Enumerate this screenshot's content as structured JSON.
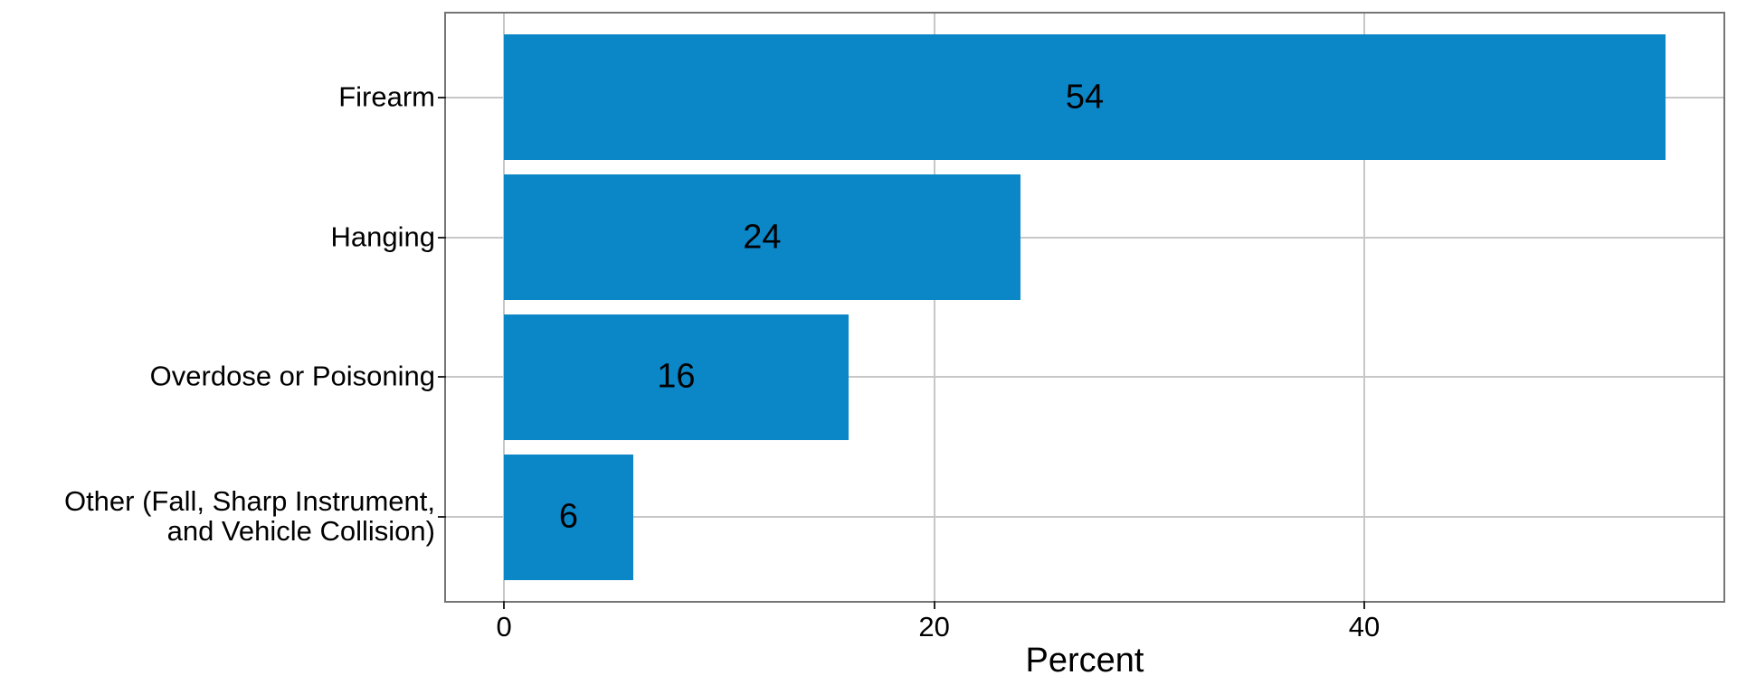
{
  "chart_data": {
    "type": "bar",
    "orientation": "horizontal",
    "title": "",
    "xlabel": "Percent",
    "ylabel": "",
    "categories": [
      "Firearm",
      "Hanging",
      "Overdose or Poisoning",
      "Other (Fall, Sharp Instrument, and Vehicle Collision)"
    ],
    "y_tick_labels_wrapped": [
      [
        "Firearm"
      ],
      [
        "Hanging"
      ],
      [
        "Overdose or Poisoning"
      ],
      [
        "Other (Fall, Sharp Instrument,",
        "and Vehicle Collision)"
      ]
    ],
    "values": [
      54,
      24,
      16,
      6
    ],
    "bar_labels": [
      "54",
      "24",
      "16",
      "6"
    ],
    "bar_label_position": "center-of-bar",
    "x_ticks": [
      0,
      20,
      40
    ],
    "x_tick_labels": [
      "0",
      "20",
      "40"
    ],
    "xlim": [
      -2.7,
      56.7
    ],
    "grid": "major-only",
    "legend": "none"
  },
  "colors": {
    "bar-color": "#0b86c7",
    "grid-color": "#c7c7c7",
    "border-color": "#757575",
    "tick-color": "#262626",
    "text-color": "#000000",
    "background": "#ffffff"
  }
}
